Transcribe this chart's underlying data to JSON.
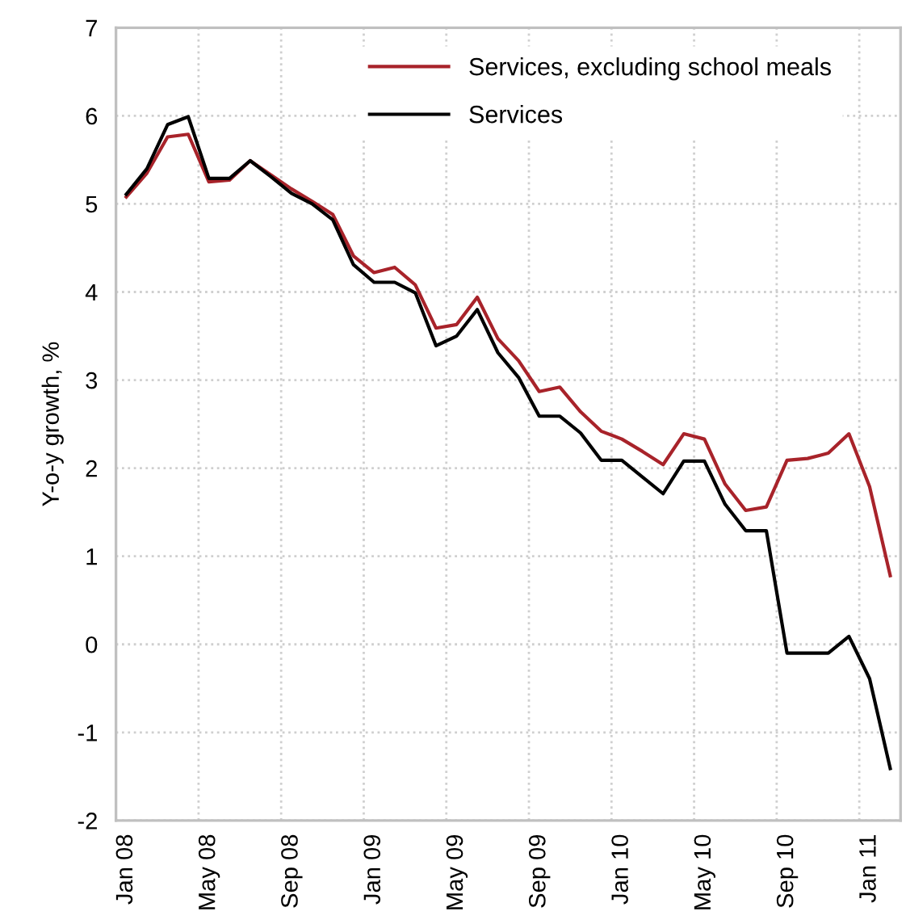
{
  "chart_data": {
    "type": "line",
    "ylabel": "Y-o-y growth, %",
    "categories": [
      "Jan 08",
      null,
      null,
      null,
      "May 08",
      null,
      null,
      null,
      "Sep 08",
      null,
      null,
      null,
      "Jan 09",
      null,
      null,
      null,
      "May 09",
      null,
      null,
      null,
      "Sep 09",
      null,
      null,
      null,
      "Jan 10",
      null,
      null,
      null,
      "May 10",
      null,
      null,
      null,
      "Sep 10",
      null,
      null,
      null,
      "Jan 11",
      null
    ],
    "series": [
      {
        "name": "Services, excluding school meals",
        "color": "#a8232a",
        "values": [
          5.08,
          5.35,
          5.76,
          5.79,
          5.25,
          5.27,
          5.49,
          5.33,
          5.17,
          5.03,
          4.88,
          4.41,
          4.22,
          4.28,
          4.08,
          3.59,
          3.63,
          3.94,
          3.47,
          3.22,
          2.87,
          2.92,
          2.64,
          2.42,
          2.33,
          2.19,
          2.04,
          2.39,
          2.33,
          1.82,
          1.52,
          1.56,
          2.09,
          2.11,
          2.17,
          2.39,
          1.79,
          0.78
        ]
      },
      {
        "name": "Services",
        "color": "#000000",
        "values": [
          5.11,
          5.4,
          5.9,
          5.99,
          5.29,
          5.29,
          5.49,
          5.31,
          5.12,
          5.0,
          4.82,
          4.31,
          4.11,
          4.11,
          3.99,
          3.39,
          3.5,
          3.8,
          3.31,
          3.03,
          2.59,
          2.59,
          2.4,
          2.09,
          2.09,
          1.9,
          1.71,
          2.08,
          2.08,
          1.59,
          1.29,
          1.29,
          -0.1,
          -0.1,
          -0.1,
          0.09,
          -0.39,
          -1.41
        ]
      }
    ],
    "ylim": [
      -2,
      7
    ],
    "yticks": [
      -2,
      -1,
      0,
      1,
      2,
      3,
      4,
      5,
      6,
      7
    ],
    "grid": true,
    "legend": "top right",
    "marker": "none",
    "line_style": "solid"
  }
}
